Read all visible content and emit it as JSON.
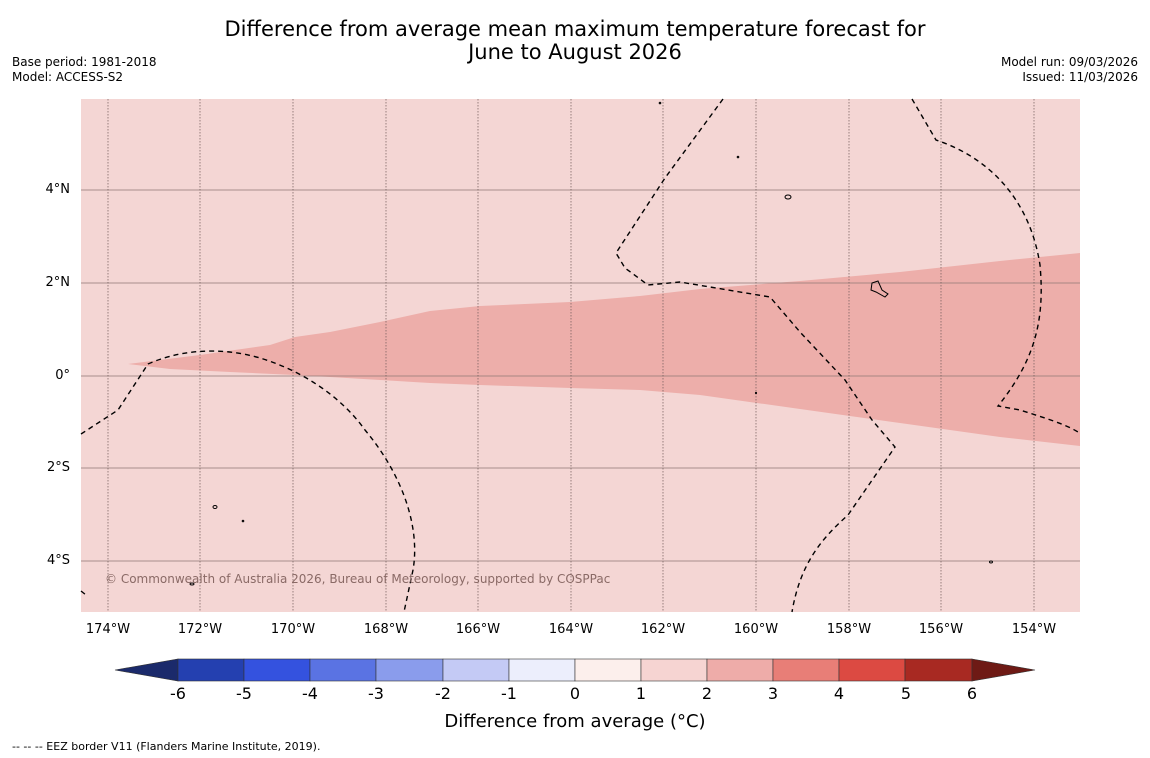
{
  "title_line1": "Difference from average mean maximum temperature forecast for",
  "title_line2": "June to August 2026",
  "meta_left": {
    "base_period": "Base period: 1981-2018",
    "model": "Model: ACCESS-S2"
  },
  "meta_right": {
    "model_run": "Model run: 09/03/2026",
    "issued": "Issued: 11/03/2026"
  },
  "map": {
    "lat_labels": [
      "4°N",
      "2°N",
      "0°",
      "2°S",
      "4°S"
    ],
    "lon_labels": [
      "174°W",
      "172°W",
      "170°W",
      "168°W",
      "166°W",
      "164°W",
      "162°W",
      "160°W",
      "158°W",
      "156°W",
      "154°W"
    ],
    "copyright": "© Commonwealth of Australia 2026, Bureau of Meteorology, supported by COSPPac",
    "colors": {
      "band_0_1": "#f4d6d4",
      "band_1_2": "#edaeaa"
    }
  },
  "colorbar": {
    "tick_labels": [
      "-6",
      "-5",
      "-4",
      "-3",
      "-2",
      "-1",
      "0",
      "1",
      "2",
      "3",
      "4",
      "5",
      "6"
    ],
    "label": "Difference from average (°C)",
    "colors": [
      "#1b2a6b",
      "#2440b0",
      "#3452df",
      "#5a73e3",
      "#8a9cec",
      "#c4caf5",
      "#eceefc",
      "#fcefec",
      "#f6d4d2",
      "#eeaca9",
      "#e87e77",
      "#dc4a42",
      "#a82922",
      "#6e1a15"
    ]
  },
  "footnote": "--  --  -- EEZ border V11 (Flanders Marine Institute, 2019)."
}
